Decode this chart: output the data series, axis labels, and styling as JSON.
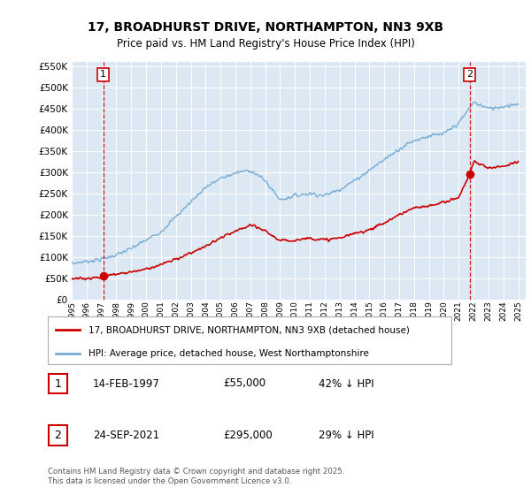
{
  "title": "17, BROADHURST DRIVE, NORTHAMPTON, NN3 9XB",
  "subtitle": "Price paid vs. HM Land Registry's House Price Index (HPI)",
  "bg_color": "#ffffff",
  "plot_bg_color": "#dce9f5",
  "ylim": [
    0,
    560000
  ],
  "yticks": [
    0,
    50000,
    100000,
    150000,
    200000,
    250000,
    300000,
    350000,
    400000,
    450000,
    500000,
    550000
  ],
  "sale1": {
    "date_num": 1997.12,
    "price": 55000,
    "label": "1",
    "date_str": "14-FEB-1997",
    "pct": "42% ↓ HPI"
  },
  "sale2": {
    "date_num": 2021.73,
    "price": 295000,
    "label": "2",
    "date_str": "24-SEP-2021",
    "pct": "29% ↓ HPI"
  },
  "legend_line1": "17, BROADHURST DRIVE, NORTHAMPTON, NN3 9XB (detached house)",
  "legend_line2": "HPI: Average price, detached house, West Northamptonshire",
  "footer": "Contains HM Land Registry data © Crown copyright and database right 2025.\nThis data is licensed under the Open Government Licence v3.0.",
  "line_color_red": "#cc0000",
  "line_color_blue": "#7aadd4",
  "grid_color": "#ffffff",
  "dashed_color": "#cc0000",
  "hpi_anchors_x": [
    1995,
    1996,
    1997,
    1998,
    1999,
    2000,
    2001,
    2002,
    2003,
    2004,
    2005,
    2006,
    2007,
    2008,
    2009,
    2010,
    2011,
    2012,
    2013,
    2014,
    2015,
    2016,
    2017,
    2018,
    2019,
    2020,
    2021,
    2021.5,
    2022,
    2023,
    2024,
    2025
  ],
  "hpi_anchors_y": [
    85000,
    90000,
    95000,
    105000,
    120000,
    140000,
    160000,
    195000,
    230000,
    265000,
    285000,
    298000,
    305000,
    280000,
    235000,
    245000,
    250000,
    245000,
    260000,
    280000,
    305000,
    330000,
    355000,
    375000,
    385000,
    390000,
    415000,
    440000,
    465000,
    450000,
    455000,
    462000
  ],
  "red_anchors_x": [
    1995,
    1996,
    1997.0,
    1997.12,
    1998,
    1999,
    2000,
    2001,
    2002,
    2003,
    2004,
    2005,
    2006,
    2007,
    2008,
    2009,
    2010,
    2011,
    2012,
    2013,
    2014,
    2015,
    2016,
    2017,
    2018,
    2019,
    2020,
    2021.0,
    2021.73,
    2022,
    2023,
    2024,
    2025
  ],
  "red_anchors_y": [
    48000,
    50000,
    53000,
    55000,
    60000,
    65000,
    72000,
    82000,
    95000,
    110000,
    125000,
    145000,
    160000,
    175000,
    162000,
    138000,
    140000,
    145000,
    140000,
    145000,
    155000,
    165000,
    180000,
    200000,
    215000,
    220000,
    230000,
    240000,
    295000,
    325000,
    310000,
    315000,
    325000
  ]
}
